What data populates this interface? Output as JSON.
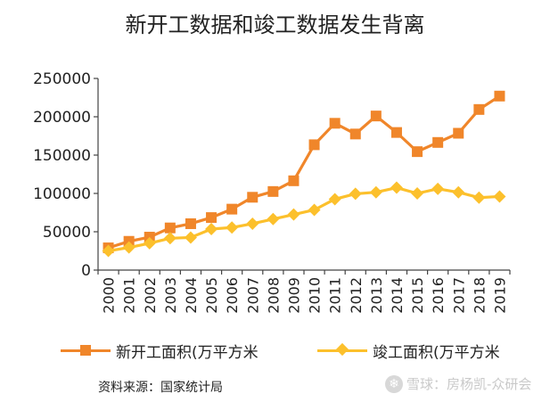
{
  "title": "新开工数据和竣工数据发生背离",
  "source": "资料来源：国家统计局",
  "watermark": "雪球：房杨凯-众研会",
  "colors": {
    "new_starts": "#f0862a",
    "completions": "#fcc02c",
    "axis": "#444444"
  },
  "legend_markers": {
    "new_starts": "square",
    "completions": "diamond"
  },
  "chart_data": {
    "type": "line",
    "categories": [
      "2000",
      "2001",
      "2002",
      "2003",
      "2004",
      "2005",
      "2006",
      "2007",
      "2008",
      "2009",
      "2010",
      "2011",
      "2012",
      "2013",
      "2014",
      "2015",
      "2016",
      "2017",
      "2018",
      "2019"
    ],
    "series": [
      {
        "name": "新开工面积(万平方米",
        "values": [
          29000,
          37500,
          43000,
          55000,
          60500,
          68500,
          79500,
          95000,
          102500,
          116500,
          163500,
          191500,
          177500,
          201000,
          179500,
          154500,
          166500,
          178500,
          209500,
          227000
        ]
      },
      {
        "name": "竣工面积(万平方米",
        "values": [
          25000,
          29500,
          35000,
          41500,
          42500,
          53500,
          55500,
          60500,
          66500,
          72500,
          78500,
          92500,
          99500,
          101500,
          107500,
          100000,
          106000,
          101500,
          94500,
          96000
        ]
      }
    ],
    "xlabel": "",
    "ylabel": "",
    "ylim": [
      0,
      250000
    ],
    "yticks": [
      0,
      50000,
      100000,
      150000,
      200000,
      250000
    ],
    "ytick_labels": [
      "0",
      "50000",
      "100000",
      "150000",
      "200000",
      "250000"
    ],
    "grid": false,
    "legend_position": "bottom"
  }
}
